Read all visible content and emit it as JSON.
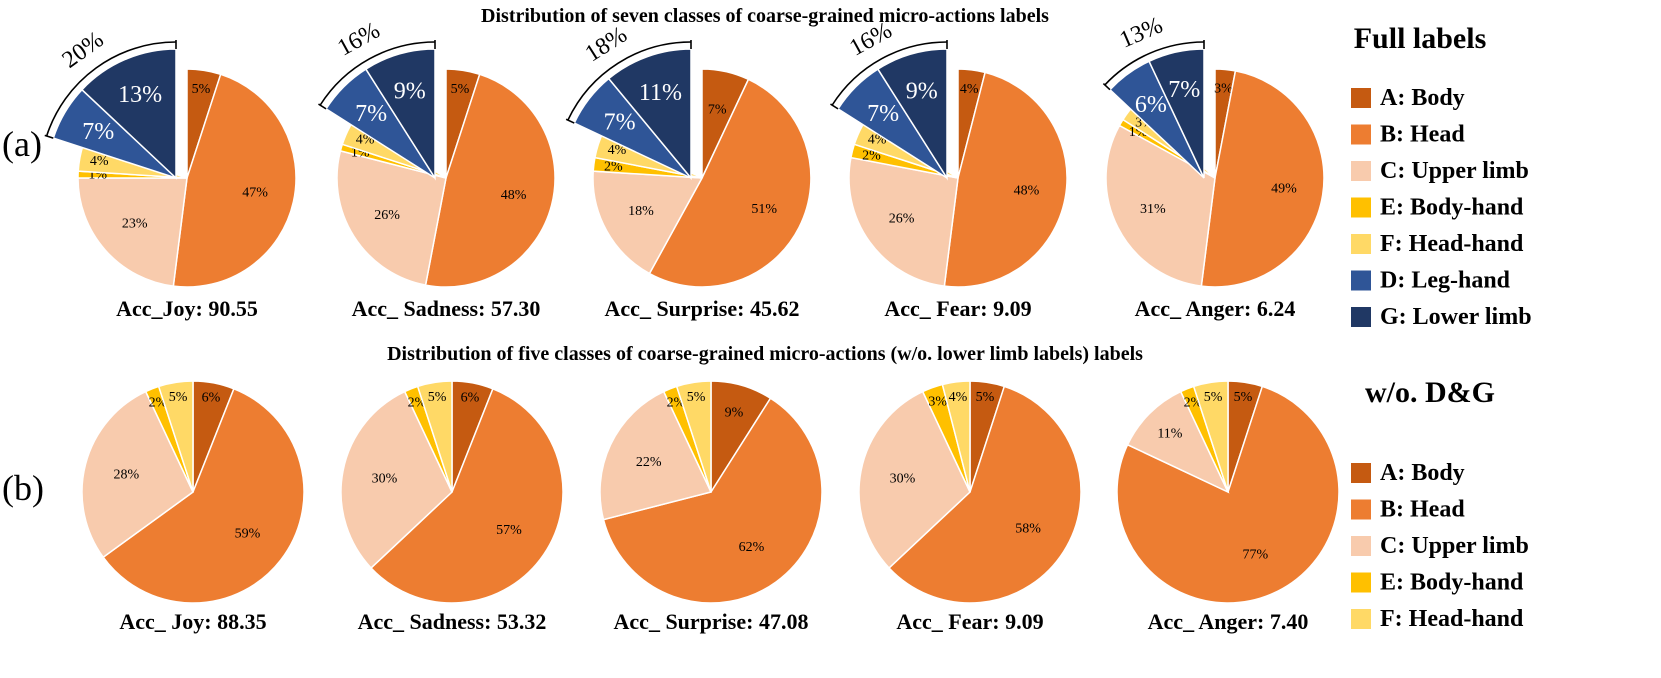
{
  "colors": {
    "A": "#C55A11",
    "B": "#ED7D31",
    "C": "#F8CBAD",
    "E": "#FFC000",
    "F": "#FFD966",
    "D": "#2F5597",
    "G": "#203864"
  },
  "panel_labels": {
    "a": "(a)",
    "b": "(b)"
  },
  "legends": {
    "full": {
      "title": "Full labels",
      "items": [
        {
          "key": "A",
          "label": "A: Body"
        },
        {
          "key": "B",
          "label": "B: Head"
        },
        {
          "key": "C",
          "label": "C: Upper limb"
        },
        {
          "key": "E",
          "label": "E: Body-hand"
        },
        {
          "key": "F",
          "label": "F: Head-hand"
        },
        {
          "key": "D",
          "label": "D: Leg-hand"
        },
        {
          "key": "G",
          "label": "G: Lower limb"
        }
      ]
    },
    "reduced": {
      "title": "w/o. D&G",
      "items": [
        {
          "key": "A",
          "label": "A: Body"
        },
        {
          "key": "B",
          "label": "B: Head"
        },
        {
          "key": "C",
          "label": "C: Upper limb"
        },
        {
          "key": "E",
          "label": "E: Body-hand"
        },
        {
          "key": "F",
          "label": "F: Head-hand"
        }
      ]
    }
  },
  "chart_data": [
    {
      "type": "pie",
      "title": "Distribution of seven classes of coarse-grained micro-actions labels",
      "slice_order": [
        "A",
        "B",
        "C",
        "E",
        "F",
        "D",
        "G"
      ],
      "exploded_group": [
        "D",
        "G"
      ],
      "pies": [
        {
          "caption": "Acc_Joy: 90.55",
          "values": [
            5,
            47,
            23,
            1,
            4,
            7,
            13
          ],
          "group_total": "20%"
        },
        {
          "caption": "Acc_ Sadness: 57.30",
          "values": [
            5,
            48,
            26,
            1,
            4,
            7,
            9
          ],
          "group_total": "16%"
        },
        {
          "caption": "Acc_ Surprise: 45.62",
          "values": [
            7,
            51,
            18,
            2,
            4,
            7,
            11
          ],
          "group_total": "18%"
        },
        {
          "caption": "Acc_ Fear: 9.09",
          "values": [
            4,
            48,
            26,
            2,
            4,
            7,
            9
          ],
          "group_total": "16%"
        },
        {
          "caption": "Acc_ Anger: 6.24",
          "values": [
            3,
            49,
            31,
            1,
            3,
            6,
            7
          ],
          "group_total": "13%"
        }
      ]
    },
    {
      "type": "pie",
      "title": "Distribution of five classes of coarse-grained micro-actions (w/o. lower limb labels) labels",
      "slice_order": [
        "A",
        "B",
        "C",
        "E",
        "F"
      ],
      "pies": [
        {
          "caption": "Acc_ Joy: 88.35",
          "values": [
            6,
            59,
            28,
            2,
            5
          ]
        },
        {
          "caption": "Acc_ Sadness: 53.32",
          "values": [
            6,
            57,
            30,
            2,
            5
          ]
        },
        {
          "caption": "Acc_ Surprise: 47.08",
          "values": [
            9,
            62,
            22,
            2,
            5
          ]
        },
        {
          "caption": "Acc_ Fear: 9.09",
          "values": [
            5,
            58,
            30,
            3,
            4
          ]
        },
        {
          "caption": "Acc_ Anger: 7.40",
          "values": [
            5,
            77,
            11,
            2,
            5
          ]
        }
      ]
    }
  ]
}
